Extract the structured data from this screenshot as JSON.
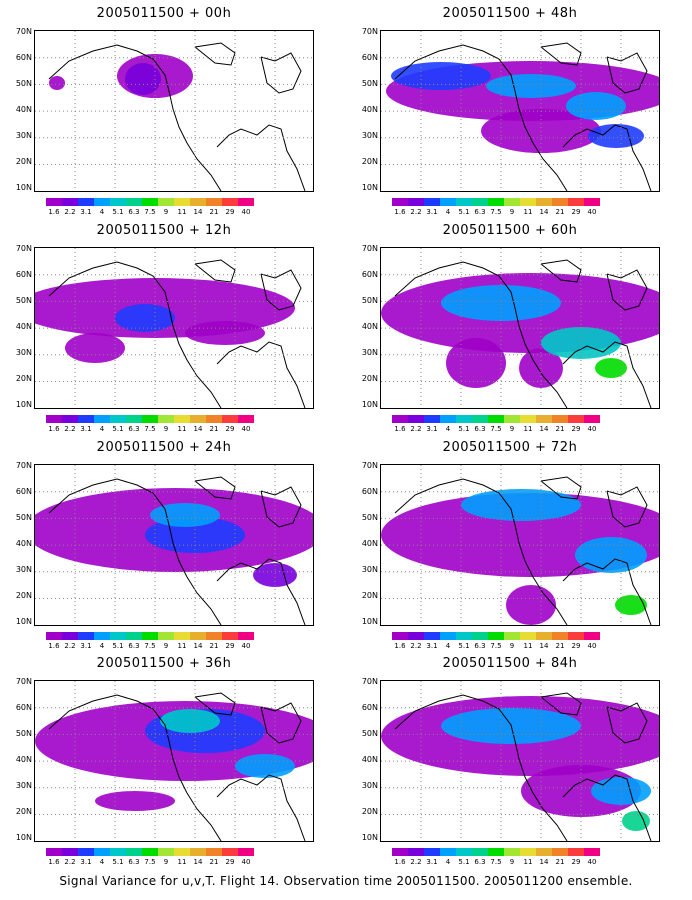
{
  "panels": [
    {
      "title": "2005011500 + 00h"
    },
    {
      "title": "2005011500 + 48h"
    },
    {
      "title": "2005011500 + 12h"
    },
    {
      "title": "2005011500 + 60h"
    },
    {
      "title": "2005011500 + 24h"
    },
    {
      "title": "2005011500 + 72h"
    },
    {
      "title": "2005011500 + 36h"
    },
    {
      "title": "2005011500 + 84h"
    }
  ],
  "lat_labels": [
    "70N",
    "60N",
    "50N",
    "40N",
    "30N",
    "20N",
    "10N"
  ],
  "colorbar": {
    "labels": [
      "1.6",
      "2.2",
      "3.1",
      "4",
      "5.1",
      "6.3",
      "7.5",
      "9",
      "11",
      "14",
      "21",
      "29",
      "40"
    ],
    "colors": [
      "#a000c8",
      "#7800dc",
      "#1e3cff",
      "#00a0ff",
      "#00c8c8",
      "#00d28c",
      "#00dc00",
      "#a0e632",
      "#e6dc32",
      "#e6af2d",
      "#f08228",
      "#fa3c3c",
      "#f00082"
    ]
  },
  "caption": "Signal Variance for u,v,T. Flight 14. Observation time 2005011500. 2005011200 ensemble."
}
